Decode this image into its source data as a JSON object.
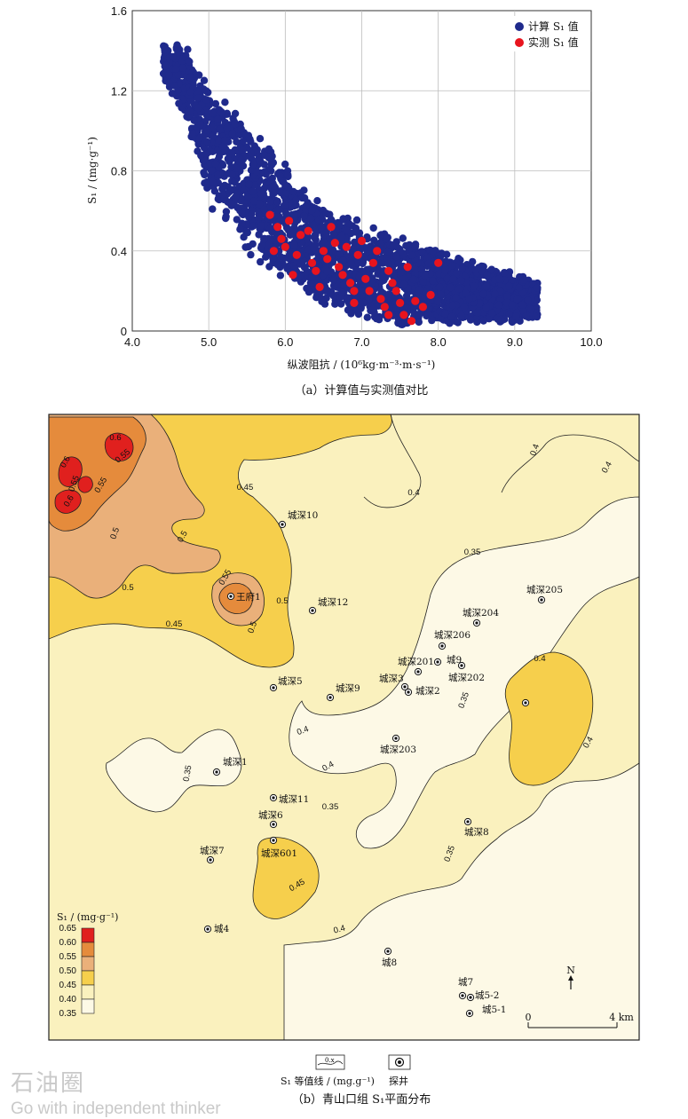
{
  "chart_data": [
    {
      "type": "scatter",
      "title": "",
      "xlabel": "纵波阻抗 / (10⁶kg·m⁻³·m·s⁻¹)",
      "ylabel": "S₁ / (mg·g⁻¹)",
      "xlim": [
        4.0,
        10.0
      ],
      "ylim": [
        0,
        1.6
      ],
      "xticks": [
        "4.0",
        "5.0",
        "6.0",
        "7.0",
        "8.0",
        "9.0",
        "10.0"
      ],
      "yticks": [
        "0",
        "0.4",
        "0.8",
        "1.2",
        "1.6"
      ],
      "grid": true,
      "legend_position": "top-right",
      "series": [
        {
          "name": "计算 S₁ 值",
          "color": "#1f2a8c",
          "band": [
            [
              4.4,
              1.25,
              1.45
            ],
            [
              4.7,
              1.05,
              1.45
            ],
            [
              5.0,
              0.62,
              1.25
            ],
            [
              5.5,
              0.38,
              1.05
            ],
            [
              6.0,
              0.22,
              0.85
            ],
            [
              6.5,
              0.12,
              0.65
            ],
            [
              7.0,
              0.05,
              0.55
            ],
            [
              7.5,
              0.02,
              0.48
            ],
            [
              8.0,
              0.02,
              0.42
            ],
            [
              8.5,
              0.03,
              0.35
            ],
            [
              9.0,
              0.04,
              0.3
            ],
            [
              9.3,
              0.04,
              0.26
            ]
          ]
        },
        {
          "name": "实测 S₁ 值",
          "color": "#e8141e",
          "points": [
            [
              5.8,
              0.58
            ],
            [
              5.9,
              0.52
            ],
            [
              5.95,
              0.46
            ],
            [
              6.0,
              0.42
            ],
            [
              6.05,
              0.55
            ],
            [
              6.15,
              0.38
            ],
            [
              6.2,
              0.48
            ],
            [
              6.3,
              0.5
            ],
            [
              6.35,
              0.34
            ],
            [
              6.4,
              0.3
            ],
            [
              6.5,
              0.4
            ],
            [
              6.55,
              0.36
            ],
            [
              6.6,
              0.52
            ],
            [
              6.65,
              0.44
            ],
            [
              6.7,
              0.32
            ],
            [
              6.75,
              0.28
            ],
            [
              6.8,
              0.42
            ],
            [
              6.85,
              0.24
            ],
            [
              6.9,
              0.2
            ],
            [
              6.95,
              0.38
            ],
            [
              7.0,
              0.45
            ],
            [
              7.05,
              0.26
            ],
            [
              7.1,
              0.2
            ],
            [
              7.15,
              0.34
            ],
            [
              7.2,
              0.4
            ],
            [
              7.25,
              0.16
            ],
            [
              7.3,
              0.12
            ],
            [
              7.35,
              0.3
            ],
            [
              7.4,
              0.24
            ],
            [
              7.45,
              0.2
            ],
            [
              7.5,
              0.14
            ],
            [
              7.55,
              0.08
            ],
            [
              7.6,
              0.32
            ],
            [
              7.7,
              0.15
            ],
            [
              7.8,
              0.12
            ],
            [
              7.9,
              0.18
            ],
            [
              8.0,
              0.34
            ],
            [
              6.1,
              0.28
            ],
            [
              5.85,
              0.4
            ],
            [
              6.45,
              0.22
            ],
            [
              7.35,
              0.08
            ],
            [
              7.65,
              0.05
            ],
            [
              6.9,
              0.14
            ]
          ]
        }
      ]
    },
    {
      "type": "contour-map",
      "title": "",
      "legend_title": "S₁ / (mg·g⁻¹)",
      "legend_ticks": [
        "0.65",
        "0.60",
        "0.55",
        "0.50",
        "0.45",
        "0.40",
        "0.35"
      ],
      "colors": {
        "c035": "#fdf9e6",
        "c040": "#faf1be",
        "c045": "#f6cf4c",
        "c050": "#eab07a",
        "c055": "#e58b3c",
        "c060": "#e0201e"
      },
      "contour_labels": [
        "0.4",
        "0.4",
        "0.4",
        "0.4",
        "0.4",
        "0.4",
        "0.4",
        "0.4",
        "0.35",
        "0.35",
        "0.35",
        "0.35",
        "0.35",
        "0.45",
        "0.45",
        "0.45",
        "0.5",
        "0.5",
        "0.5",
        "0.5",
        "0.5",
        "0.55",
        "0.55",
        "0.55",
        "0.6",
        "0.6",
        "0.6",
        "0.55"
      ],
      "wells": [
        "城深10",
        "王府1",
        "城深12",
        "城深205",
        "城深204",
        "城深206",
        "城深201",
        "城9",
        "城深3",
        "城深202",
        "城深2",
        "城深5",
        "城深9",
        "城深203",
        "城深1",
        "城深11",
        "城深6",
        "城深8",
        "城深7",
        "城深601",
        "城4",
        "城8",
        "城7",
        "城5-2",
        "城5-1"
      ],
      "north_label": "N",
      "scale_labels": [
        "0",
        "4 km"
      ],
      "bottom_legend": {
        "contour": "S₁ 等值线 / (mg.g⁻¹)",
        "contour_sample": "0.x",
        "well": "探井"
      }
    }
  ],
  "captions": {
    "a": "（a）计算值与实测值对比",
    "b": "（b）青山口组 S₁平面分布"
  },
  "watermark": {
    "cn": "石油圈",
    "en": "Go with independent thinker"
  }
}
